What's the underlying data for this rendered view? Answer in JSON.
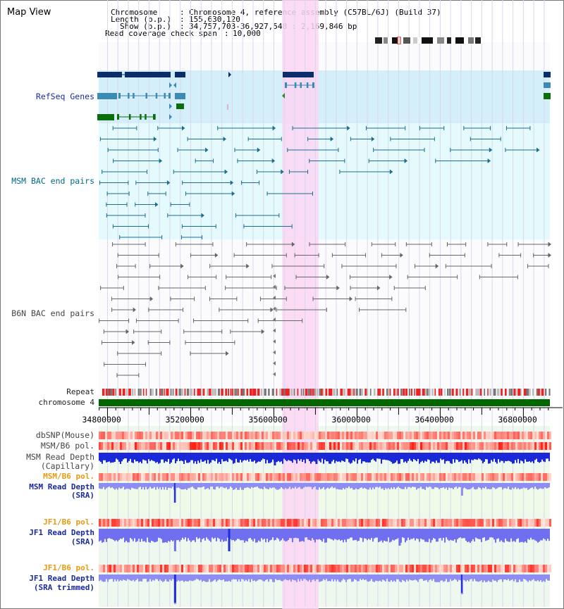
{
  "app": {
    "title": "Map View"
  },
  "header": {
    "chromosome_label": "Chromosome",
    "chromosome_value": "Chromosome 4, reference assembly (C57BL/6J) (Build 37)",
    "length_label": "Length (b.p.)",
    "length_value": "155,630,120",
    "show_label": "Show (b.p.)",
    "show_value": "34,757,703-36,927,548 : 2,169,846 bp",
    "coverage_label": "Read coverage check span",
    "coverage_value": "10,000"
  },
  "tracks": {
    "refseq": "RefSeq Genes",
    "msm_bac": "MSM BAC end pairs",
    "b6n_bac": "B6N BAC end pairs",
    "repeat": "Repeat",
    "chromosome": "chromosome 4",
    "dbsnp": "dbSNP(Mouse)",
    "msm_b6_pol": "MSM/B6 pol.",
    "msm_depth_cap_1": "MSM Read Depth",
    "msm_depth_cap_2": "(Capillary)",
    "msm_b6_pol_2": "MSM/B6 pol.",
    "msm_depth_sra_1": "MSM Read Depth",
    "msm_depth_sra_2": "(SRA)",
    "jf1_b6_pol": "JF1/B6 pol.",
    "jf1_depth_sra_1": "JF1 Read Depth",
    "jf1_depth_sra_2": "(SRA)",
    "jf1_b6_pol_2": "JF1/B6 pol.",
    "jf1_depth_trim_1": "JF1 Read Depth",
    "jf1_depth_trim_2": "(SRA trimmed)"
  },
  "axis": {
    "ticks": [
      {
        "label": "34800000",
        "value": 34800000
      },
      {
        "label": "35200000",
        "value": 35200000
      },
      {
        "label": "35600000",
        "value": 35600000
      },
      {
        "label": "36000000",
        "value": 36000000
      },
      {
        "label": "36400000",
        "value": 36400000
      },
      {
        "label": "36800000",
        "value": 36800000
      }
    ],
    "range": [
      34757703,
      36927548
    ]
  },
  "highlight": {
    "start": 35640000,
    "end": 35815000
  },
  "colors": {
    "refseq_bg": "#d4eefa",
    "bac_bg": "#e4fafc",
    "highlight": "#fbd6f3",
    "chrom_bar": "#006600",
    "depth_blue": "#1f2fdd",
    "depth_light": "#8d8df2",
    "pol_red": "#f02020"
  }
}
